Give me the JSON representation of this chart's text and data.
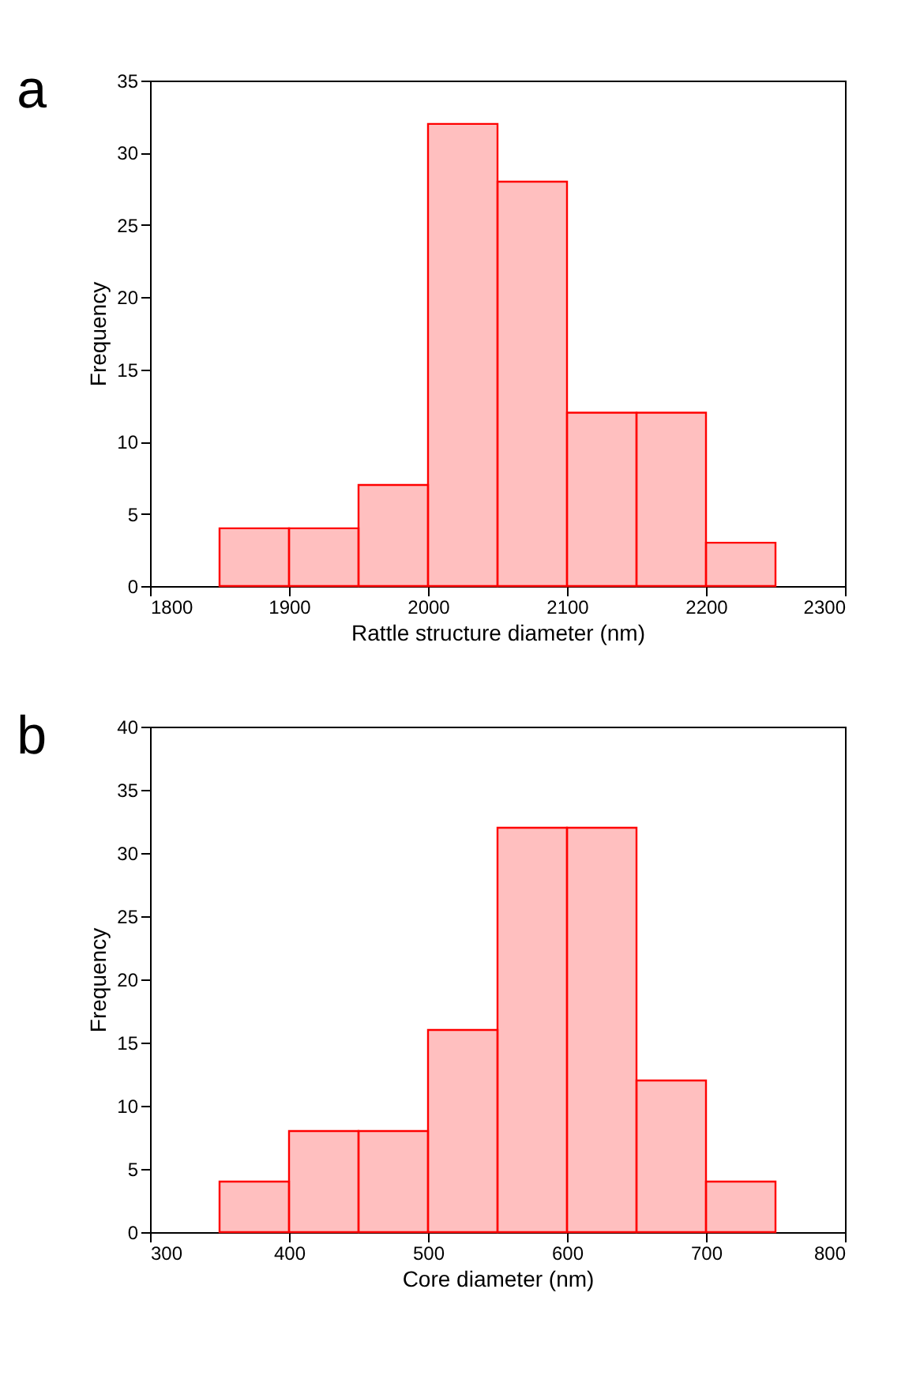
{
  "chart_data": [
    {
      "type": "histogram",
      "title": "a",
      "xlabel": "Rattle structure diameter (nm)",
      "ylabel": "Frequency",
      "bins": [
        1850,
        1900,
        1950,
        2000,
        2050,
        2100,
        2150,
        2200,
        2250
      ],
      "values": [
        4,
        4,
        7,
        32,
        28,
        12,
        12,
        3
      ],
      "color": "#ff0000",
      "xlim": [
        1800,
        2300
      ],
      "xticks": [
        1800,
        1900,
        2000,
        2100,
        2200,
        2300
      ],
      "ylim": [
        0,
        35
      ],
      "yticks": [
        0,
        5,
        10,
        15,
        20,
        25,
        30,
        35
      ],
      "grid": false
    },
    {
      "type": "histogram",
      "title": "b",
      "xlabel": "Core diameter (nm)",
      "ylabel": "Frequency",
      "bins": [
        350,
        400,
        450,
        500,
        550,
        600,
        650,
        700,
        750
      ],
      "values": [
        4,
        8,
        8,
        16,
        32,
        32,
        12,
        4
      ],
      "color": "#ff0000",
      "xlim": [
        300,
        800
      ],
      "xticks": [
        300,
        400,
        500,
        600,
        700,
        800
      ],
      "ylim": [
        0,
        40
      ],
      "yticks": [
        0,
        5,
        10,
        15,
        20,
        25,
        30,
        35,
        40
      ],
      "grid": false
    }
  ]
}
